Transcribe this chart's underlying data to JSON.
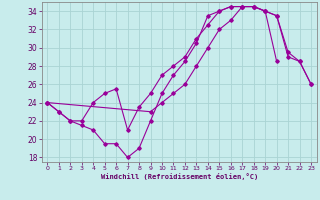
{
  "xlabel": "Windchill (Refroidissement éolien,°C)",
  "background_color": "#c8ecec",
  "grid_color": "#aad4d4",
  "line_color": "#990099",
  "xlim": [
    -0.5,
    23.5
  ],
  "ylim": [
    17.5,
    35.0
  ],
  "xticks": [
    0,
    1,
    2,
    3,
    4,
    5,
    6,
    7,
    8,
    9,
    10,
    11,
    12,
    13,
    14,
    15,
    16,
    17,
    18,
    19,
    20,
    21,
    22,
    23
  ],
  "yticks": [
    18,
    20,
    22,
    24,
    26,
    28,
    30,
    32,
    34
  ],
  "line1_x": [
    0,
    1,
    2,
    3,
    4,
    5,
    6,
    7,
    8,
    9,
    10,
    11,
    12,
    13,
    14,
    15,
    16,
    17,
    18,
    19,
    20
  ],
  "line1_y": [
    24,
    23,
    22,
    21.5,
    21,
    19.5,
    19.5,
    18,
    19,
    22,
    25,
    27,
    28.5,
    30.5,
    33.5,
    34,
    34.5,
    34.5,
    34.5,
    34,
    28.5
  ],
  "line2_x": [
    0,
    1,
    2,
    3,
    4,
    5,
    6,
    7,
    8,
    9,
    10,
    11,
    12,
    13,
    14,
    15,
    16,
    17,
    18,
    19,
    20,
    21,
    22,
    23
  ],
  "line2_y": [
    24,
    23,
    22,
    22,
    24,
    25,
    25.5,
    21,
    23.5,
    25,
    27,
    28,
    29,
    31,
    32.5,
    34,
    34.5,
    34.5,
    34.5,
    34,
    33.5,
    29,
    28.5,
    26
  ],
  "line3_x": [
    0,
    9,
    10,
    11,
    12,
    13,
    14,
    15,
    16,
    17,
    18,
    19,
    20,
    21,
    22,
    23
  ],
  "line3_y": [
    24,
    23,
    24,
    25,
    26,
    28,
    30,
    32,
    33,
    34.5,
    34.5,
    34,
    33.5,
    29.5,
    28.5,
    26
  ]
}
